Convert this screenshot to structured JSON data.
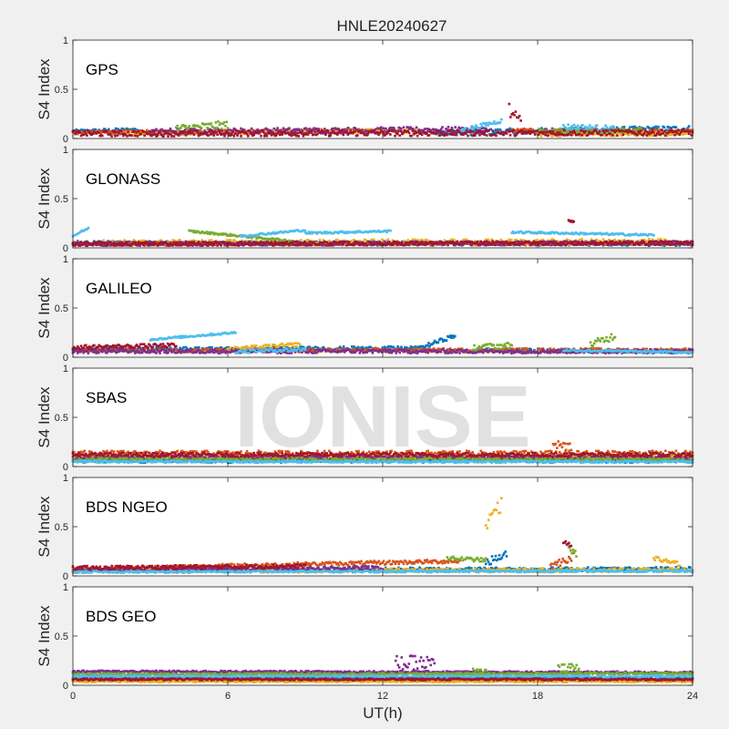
{
  "figure_title": "HNLE20240627",
  "watermark": "IONISE",
  "colors": [
    "#0072BD",
    "#D95319",
    "#EDB120",
    "#7E2F8E",
    "#77AC30",
    "#4DBEEE",
    "#A2142F"
  ],
  "chart_data": [
    {
      "type": "scatter",
      "panel_label": "GPS",
      "ylabel": "S4 Index",
      "xlabel": "",
      "xlim": [
        0,
        24
      ],
      "ylim": [
        0,
        1
      ],
      "xticks": [
        0,
        6,
        12,
        18,
        24
      ],
      "yticks": [
        0,
        0.5,
        1
      ],
      "show_xtick_labels": false,
      "grid": false,
      "series": [
        {
          "color": "#0072BD",
          "segments": [
            {
              "x0": 0,
              "x1": 2.5,
              "y0": 0.07,
              "y1": 0.09,
              "amp": 0.02
            },
            {
              "x0": 14,
              "x1": 24,
              "y0": 0.06,
              "y1": 0.1,
              "amp": 0.03
            }
          ]
        },
        {
          "color": "#D95319",
          "segments": [
            {
              "x0": 0,
              "x1": 12,
              "y0": 0.06,
              "y1": 0.08,
              "amp": 0.02
            },
            {
              "x0": 17,
              "x1": 24,
              "y0": 0.08,
              "y1": 0.07,
              "amp": 0.02
            }
          ]
        },
        {
          "color": "#EDB120",
          "segments": [
            {
              "x0": 2,
              "x1": 14,
              "y0": 0.05,
              "y1": 0.08,
              "amp": 0.02
            },
            {
              "x0": 18,
              "x1": 24,
              "y0": 0.04,
              "y1": 0.05,
              "amp": 0.02
            }
          ]
        },
        {
          "color": "#7E2F8E",
          "segments": [
            {
              "x0": 3,
              "x1": 16,
              "y0": 0.07,
              "y1": 0.09,
              "amp": 0.03
            }
          ]
        },
        {
          "color": "#77AC30",
          "segments": [
            {
              "x0": 4,
              "x1": 6,
              "y0": 0.1,
              "y1": 0.14,
              "amp": 0.04
            },
            {
              "x0": 18,
              "x1": 22,
              "y0": 0.07,
              "y1": 0.08,
              "amp": 0.03
            }
          ]
        },
        {
          "color": "#4DBEEE",
          "segments": [
            {
              "x0": 15,
              "x1": 16.6,
              "y0": 0.08,
              "y1": 0.18,
              "amp": 0.02
            },
            {
              "x0": 19,
              "x1": 21,
              "y0": 0.12,
              "y1": 0.1,
              "amp": 0.03
            }
          ]
        },
        {
          "color": "#A2142F",
          "segments": [
            {
              "x0": 0,
              "x1": 24,
              "y0": 0.05,
              "y1": 0.06,
              "amp": 0.03
            },
            {
              "x0": 16.9,
              "x1": 17.4,
              "y0": 0.28,
              "y1": 0.12,
              "amp": 0.08
            }
          ]
        }
      ]
    },
    {
      "type": "scatter",
      "panel_label": "GLONASS",
      "ylabel": "S4 Index",
      "xlabel": "",
      "xlim": [
        0,
        24
      ],
      "ylim": [
        0,
        1
      ],
      "xticks": [
        0,
        6,
        12,
        18,
        24
      ],
      "yticks": [
        0,
        0.5,
        1
      ],
      "show_xtick_labels": false,
      "grid": false,
      "series": [
        {
          "color": "#0072BD",
          "segments": [
            {
              "x0": 0,
              "x1": 24,
              "y0": 0.05,
              "y1": 0.04,
              "amp": 0.02
            }
          ]
        },
        {
          "color": "#D95319",
          "segments": [
            {
              "x0": 0,
              "x1": 24,
              "y0": 0.04,
              "y1": 0.05,
              "amp": 0.02
            }
          ]
        },
        {
          "color": "#EDB120",
          "segments": [
            {
              "x0": 1,
              "x1": 23,
              "y0": 0.05,
              "y1": 0.06,
              "amp": 0.03
            }
          ]
        },
        {
          "color": "#7E2F8E",
          "segments": [
            {
              "x0": 0,
              "x1": 24,
              "y0": 0.04,
              "y1": 0.05,
              "amp": 0.02
            }
          ]
        },
        {
          "color": "#77AC30",
          "segments": [
            {
              "x0": 4.5,
              "x1": 8.5,
              "y0": 0.17,
              "y1": 0.07,
              "amp": 0.01
            }
          ]
        },
        {
          "color": "#4DBEEE",
          "segments": [
            {
              "x0": 0,
              "x1": 0.6,
              "y0": 0.12,
              "y1": 0.2,
              "amp": 0.01
            },
            {
              "x0": 6.5,
              "x1": 9,
              "y0": 0.12,
              "y1": 0.18,
              "amp": 0.01
            },
            {
              "x0": 9,
              "x1": 12.3,
              "y0": 0.15,
              "y1": 0.17,
              "amp": 0.01
            },
            {
              "x0": 17,
              "x1": 22.5,
              "y0": 0.16,
              "y1": 0.13,
              "amp": 0.01
            }
          ]
        },
        {
          "color": "#A2142F",
          "segments": [
            {
              "x0": 0,
              "x1": 24,
              "y0": 0.04,
              "y1": 0.05,
              "amp": 0.02
            },
            {
              "x0": 19.2,
              "x1": 19.4,
              "y0": 0.28,
              "y1": 0.26,
              "amp": 0.01
            }
          ]
        }
      ]
    },
    {
      "type": "scatter",
      "panel_label": "GALILEO",
      "ylabel": "S4 Index",
      "xlabel": "",
      "xlim": [
        0,
        24
      ],
      "ylim": [
        0,
        1
      ],
      "xticks": [
        0,
        6,
        12,
        18,
        24
      ],
      "yticks": [
        0,
        0.5,
        1
      ],
      "show_xtick_labels": false,
      "grid": false,
      "series": [
        {
          "color": "#0072BD",
          "segments": [
            {
              "x0": 0,
              "x1": 13.5,
              "y0": 0.08,
              "y1": 0.09,
              "amp": 0.02
            },
            {
              "x0": 13.5,
              "x1": 14.8,
              "y0": 0.1,
              "y1": 0.22,
              "amp": 0.02
            },
            {
              "x0": 16,
              "x1": 24,
              "y0": 0.07,
              "y1": 0.06,
              "amp": 0.02
            }
          ]
        },
        {
          "color": "#D95319",
          "segments": [
            {
              "x0": 0,
              "x1": 24,
              "y0": 0.07,
              "y1": 0.07,
              "amp": 0.02
            }
          ]
        },
        {
          "color": "#EDB120",
          "segments": [
            {
              "x0": 6,
              "x1": 8.8,
              "y0": 0.08,
              "y1": 0.13,
              "amp": 0.02
            }
          ]
        },
        {
          "color": "#7E2F8E",
          "segments": [
            {
              "x0": 0,
              "x1": 24,
              "y0": 0.06,
              "y1": 0.06,
              "amp": 0.02
            }
          ]
        },
        {
          "color": "#77AC30",
          "segments": [
            {
              "x0": 15.5,
              "x1": 17,
              "y0": 0.1,
              "y1": 0.12,
              "amp": 0.03
            },
            {
              "x0": 20,
              "x1": 21,
              "y0": 0.12,
              "y1": 0.22,
              "amp": 0.04
            }
          ]
        },
        {
          "color": "#4DBEEE",
          "segments": [
            {
              "x0": 3,
              "x1": 6.3,
              "y0": 0.18,
              "y1": 0.25,
              "amp": 0.01
            },
            {
              "x0": 6.3,
              "x1": 9,
              "y0": 0.06,
              "y1": 0.08,
              "amp": 0.02
            },
            {
              "x0": 19,
              "x1": 24,
              "y0": 0.07,
              "y1": 0.05,
              "amp": 0.01
            }
          ]
        },
        {
          "color": "#A2142F",
          "segments": [
            {
              "x0": 0,
              "x1": 4,
              "y0": 0.1,
              "y1": 0.12,
              "amp": 0.02
            }
          ]
        }
      ]
    },
    {
      "type": "scatter",
      "panel_label": "SBAS",
      "ylabel": "S4 Index",
      "xlabel": "",
      "xlim": [
        0,
        24
      ],
      "ylim": [
        0,
        1
      ],
      "xticks": [
        0,
        6,
        12,
        18,
        24
      ],
      "yticks": [
        0,
        0.5,
        1
      ],
      "show_xtick_labels": false,
      "grid": false,
      "series": [
        {
          "color": "#0072BD",
          "segments": [
            {
              "x0": 0,
              "x1": 24,
              "y0": 0.06,
              "y1": 0.06,
              "amp": 0.02
            }
          ]
        },
        {
          "color": "#D95319",
          "segments": [
            {
              "x0": 0,
              "x1": 24,
              "y0": 0.13,
              "y1": 0.13,
              "amp": 0.03
            },
            {
              "x0": 18.6,
              "x1": 19.3,
              "y0": 0.22,
              "y1": 0.2,
              "amp": 0.05
            }
          ]
        },
        {
          "color": "#EDB120",
          "segments": [
            {
              "x0": 0,
              "x1": 24,
              "y0": 0.1,
              "y1": 0.1,
              "amp": 0.02
            }
          ]
        },
        {
          "color": "#7E2F8E",
          "segments": [
            {
              "x0": 0,
              "x1": 24,
              "y0": 0.09,
              "y1": 0.09,
              "amp": 0.02
            }
          ]
        },
        {
          "color": "#77AC30",
          "segments": [
            {
              "x0": 0,
              "x1": 24,
              "y0": 0.07,
              "y1": 0.07,
              "amp": 0.02
            }
          ]
        },
        {
          "color": "#4DBEEE",
          "segments": [
            {
              "x0": 0,
              "x1": 24,
              "y0": 0.05,
              "y1": 0.05,
              "amp": 0.01
            }
          ]
        },
        {
          "color": "#A2142F",
          "segments": [
            {
              "x0": 0,
              "x1": 24,
              "y0": 0.12,
              "y1": 0.12,
              "amp": 0.02
            }
          ]
        }
      ]
    },
    {
      "type": "scatter",
      "panel_label": "BDS NGEO",
      "ylabel": "S4 Index",
      "xlabel": "",
      "xlim": [
        0,
        24
      ],
      "ylim": [
        0,
        1
      ],
      "xticks": [
        0,
        6,
        12,
        18,
        24
      ],
      "yticks": [
        0,
        0.5,
        1
      ],
      "show_xtick_labels": false,
      "grid": false,
      "series": [
        {
          "color": "#0072BD",
          "segments": [
            {
              "x0": 0,
              "x1": 24,
              "y0": 0.06,
              "y1": 0.07,
              "amp": 0.02
            },
            {
              "x0": 16,
              "x1": 16.8,
              "y0": 0.14,
              "y1": 0.22,
              "amp": 0.04
            }
          ]
        },
        {
          "color": "#D95319",
          "segments": [
            {
              "x0": 0,
              "x1": 15,
              "y0": 0.07,
              "y1": 0.15,
              "amp": 0.02
            },
            {
              "x0": 18.5,
              "x1": 19.4,
              "y0": 0.1,
              "y1": 0.2,
              "amp": 0.04
            }
          ]
        },
        {
          "color": "#EDB120",
          "segments": [
            {
              "x0": 0,
              "x1": 24,
              "y0": 0.05,
              "y1": 0.06,
              "amp": 0.02
            },
            {
              "x0": 16,
              "x1": 16.6,
              "y0": 0.5,
              "y1": 0.72,
              "amp": 0.08
            },
            {
              "x0": 22.5,
              "x1": 23.5,
              "y0": 0.18,
              "y1": 0.12,
              "amp": 0.02
            }
          ]
        },
        {
          "color": "#7E2F8E",
          "segments": [
            {
              "x0": 0,
              "x1": 12,
              "y0": 0.06,
              "y1": 0.08,
              "amp": 0.02
            }
          ]
        },
        {
          "color": "#77AC30",
          "segments": [
            {
              "x0": 14.5,
              "x1": 16,
              "y0": 0.18,
              "y1": 0.16,
              "amp": 0.02
            },
            {
              "x0": 19.2,
              "x1": 19.5,
              "y0": 0.28,
              "y1": 0.22,
              "amp": 0.03
            }
          ]
        },
        {
          "color": "#4DBEEE",
          "segments": [
            {
              "x0": 0,
              "x1": 24,
              "y0": 0.04,
              "y1": 0.05,
              "amp": 0.01
            }
          ]
        },
        {
          "color": "#A2142F",
          "segments": [
            {
              "x0": 0,
              "x1": 9,
              "y0": 0.08,
              "y1": 0.1,
              "amp": 0.02
            },
            {
              "x0": 19,
              "x1": 19.3,
              "y0": 0.35,
              "y1": 0.3,
              "amp": 0.02
            }
          ]
        }
      ]
    },
    {
      "type": "scatter",
      "panel_label": "BDS GEO",
      "ylabel": "S4 Index",
      "xlabel": "UT(h)",
      "xlim": [
        0,
        24
      ],
      "ylim": [
        0,
        1
      ],
      "xticks": [
        0,
        6,
        12,
        18,
        24
      ],
      "yticks": [
        0,
        0.5,
        1
      ],
      "show_xtick_labels": true,
      "grid": false,
      "series": [
        {
          "color": "#0072BD",
          "segments": [
            {
              "x0": 0,
              "x1": 24,
              "y0": 0.07,
              "y1": 0.07,
              "amp": 0.01
            }
          ]
        },
        {
          "color": "#D95319",
          "segments": [
            {
              "x0": 0,
              "x1": 24,
              "y0": 0.05,
              "y1": 0.05,
              "amp": 0.01
            }
          ]
        },
        {
          "color": "#EDB120",
          "segments": [
            {
              "x0": 0,
              "x1": 24,
              "y0": 0.04,
              "y1": 0.04,
              "amp": 0.01
            }
          ]
        },
        {
          "color": "#7E2F8E",
          "segments": [
            {
              "x0": 0,
              "x1": 24,
              "y0": 0.14,
              "y1": 0.13,
              "amp": 0.01
            },
            {
              "x0": 12.5,
              "x1": 14,
              "y0": 0.22,
              "y1": 0.22,
              "amp": 0.08
            }
          ]
        },
        {
          "color": "#77AC30",
          "segments": [
            {
              "x0": 0,
              "x1": 24,
              "y0": 0.11,
              "y1": 0.12,
              "amp": 0.01
            },
            {
              "x0": 15.5,
              "x1": 16,
              "y0": 0.15,
              "y1": 0.14,
              "amp": 0.03
            },
            {
              "x0": 18.8,
              "x1": 19.6,
              "y0": 0.17,
              "y1": 0.18,
              "amp": 0.04
            }
          ]
        },
        {
          "color": "#4DBEEE",
          "segments": [
            {
              "x0": 0,
              "x1": 24,
              "y0": 0.09,
              "y1": 0.09,
              "amp": 0.01
            }
          ]
        },
        {
          "color": "#A2142F",
          "segments": [
            {
              "x0": 0,
              "x1": 24,
              "y0": 0.06,
              "y1": 0.06,
              "amp": 0.01
            }
          ]
        }
      ]
    }
  ]
}
